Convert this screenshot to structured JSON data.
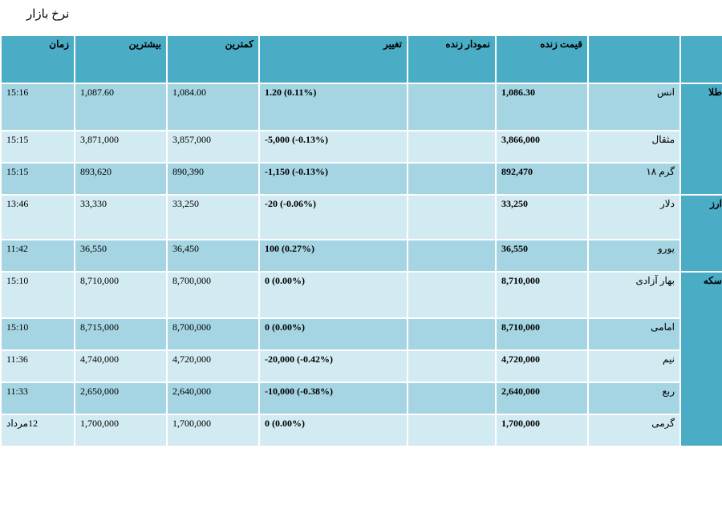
{
  "page_title": "نرخ بازار",
  "headers": {
    "category": "",
    "name": "",
    "live_price": "قیمت زنده",
    "live_chart": "نمودار زنده",
    "change": "تغییر",
    "low": "کمترین",
    "high": "بیشترین",
    "time": "زمان"
  },
  "categories": {
    "gold": "طلا",
    "currency": "ارز",
    "coin": "سکه"
  },
  "rows": [
    {
      "name": "انس",
      "price": "1,086.30",
      "change": "1.20 (0.11%)",
      "low": "1,084.00",
      "high": "1,087.60",
      "time": "15:16"
    },
    {
      "name": "مثقال",
      "price": "3,866,000",
      "change": "-5,000 (-0.13%)",
      "low": "3,857,000",
      "high": "3,871,000",
      "time": "15:15"
    },
    {
      "name": "گرم ۱۸",
      "price": "892,470",
      "change": "-1,150 (-0.13%)",
      "low": "890,390",
      "high": "893,620",
      "time": "15:15"
    },
    {
      "name": "دلار",
      "price": "33,250",
      "change": "-20 (-0.06%)",
      "low": "33,250",
      "high": "33,330",
      "time": "13:46"
    },
    {
      "name": "یورو",
      "price": "36,550",
      "change": "100 (0.27%)",
      "low": "36,450",
      "high": "36,550",
      "time": "11:42"
    },
    {
      "name": "بهار آزادی",
      "price": "8,710,000",
      "change": "0 (0.00%)",
      "low": "8,700,000",
      "high": "8,710,000",
      "time": "15:10"
    },
    {
      "name": "امامی",
      "price": "8,710,000",
      "change": "0 (0.00%)",
      "low": "8,700,000",
      "high": "8,715,000",
      "time": "15:10"
    },
    {
      "name": "نیم",
      "price": "4,720,000",
      "change": "-20,000 (-0.42%)",
      "low": "4,720,000",
      "high": "4,740,000",
      "time": "11:36"
    },
    {
      "name": "ربع",
      "price": "2,640,000",
      "change": "-10,000 (-0.38%)",
      "low": "2,640,000",
      "high": "2,650,000",
      "time": "11:33"
    },
    {
      "name": "گرمی",
      "price": "1,700,000",
      "change": "0 (0.00%)",
      "low": "1,700,000",
      "high": "1,700,000",
      "time": "12مرداد"
    }
  ],
  "colors": {
    "header": "#4bacc6",
    "row_dark": "#a5d5e2",
    "row_light": "#d2eaf1"
  }
}
